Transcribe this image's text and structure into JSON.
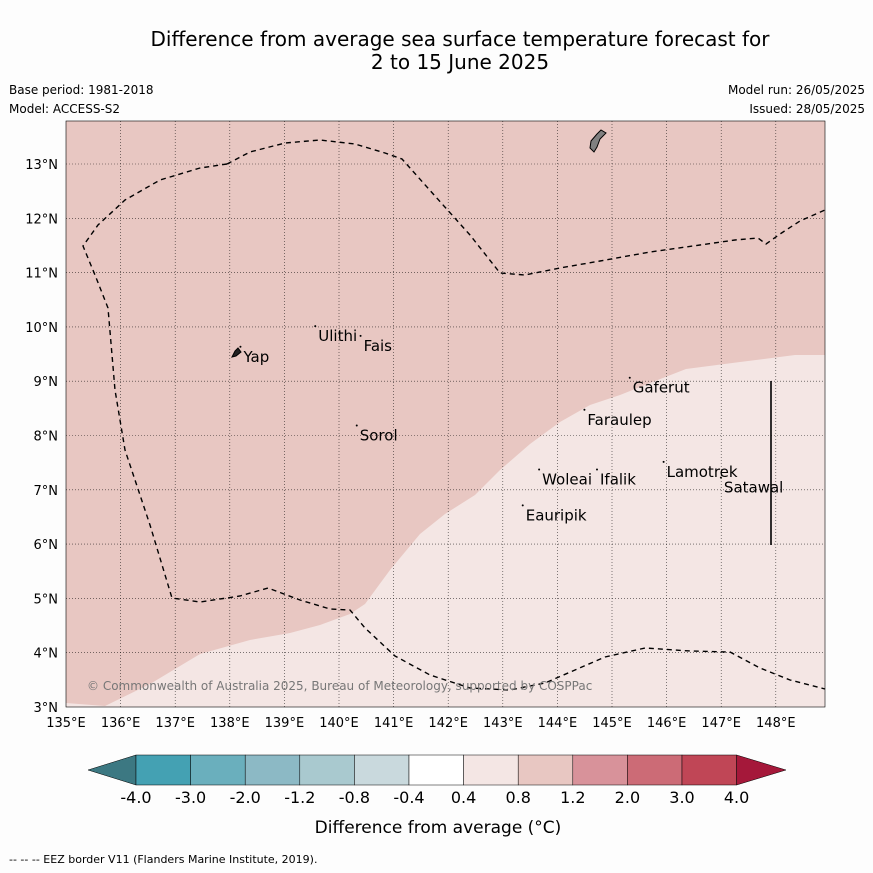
{
  "title": {
    "line1": "Difference from average sea surface temperature forecast for",
    "line2": "2 to 15 June 2025"
  },
  "meta_left": {
    "base_period": "Base period: 1981-2018",
    "model": "Model: ACCESS-S2"
  },
  "meta_right": {
    "model_run": "Model run: 26/05/2025",
    "issued": "Issued: 28/05/2025"
  },
  "map": {
    "lat_ticks": [
      "3°N",
      "4°N",
      "5°N",
      "6°N",
      "7°N",
      "8°N",
      "9°N",
      "10°N",
      "11°N",
      "12°N",
      "13°N"
    ],
    "lon_ticks": [
      "135°E",
      "136°E",
      "137°E",
      "138°E",
      "139°E",
      "140°E",
      "141°E",
      "142°E",
      "143°E",
      "144°E",
      "145°E",
      "146°E",
      "147°E",
      "148°E"
    ],
    "places": [
      {
        "name": "Yap",
        "lon": 138.25,
        "lat": 9.45
      },
      {
        "name": "Ulithi",
        "lon": 139.62,
        "lat": 9.83
      },
      {
        "name": "Fais",
        "lon": 140.45,
        "lat": 9.65
      },
      {
        "name": "Sorol",
        "lon": 140.38,
        "lat": 8.0
      },
      {
        "name": "Gaferut",
        "lon": 145.38,
        "lat": 8.88
      },
      {
        "name": "Faraulep",
        "lon": 144.55,
        "lat": 8.29
      },
      {
        "name": "Woleai",
        "lon": 143.72,
        "lat": 7.19
      },
      {
        "name": "Ifalik",
        "lon": 144.78,
        "lat": 7.19
      },
      {
        "name": "Lamotrek",
        "lon": 146.0,
        "lat": 7.33
      },
      {
        "name": "Satawal",
        "lon": 147.05,
        "lat": 7.04
      },
      {
        "name": "Eauripik",
        "lon": 143.42,
        "lat": 6.53
      }
    ],
    "copyright": "© Commonwealth of Australia 2025, Bureau of Meteorology, supported by COSPPac",
    "colors": {
      "range_0.8_1.2": "#e8c7c2",
      "range_0.4_0.8": "#f4e6e4",
      "land": "#808080"
    }
  },
  "colorbar": {
    "bins": [
      {
        "color": "#3c7882"
      },
      {
        "color": "#44a1b3"
      },
      {
        "color": "#6aafbd"
      },
      {
        "color": "#8cb9c5"
      },
      {
        "color": "#a9c9cf"
      },
      {
        "color": "#c9d9dd"
      },
      {
        "color": "#ffffff"
      },
      {
        "color": "#f4e6e4"
      },
      {
        "color": "#e8c7c2"
      },
      {
        "color": "#d8929a"
      },
      {
        "color": "#cc6b76"
      },
      {
        "color": "#c04656"
      },
      {
        "color": "#a5183a"
      }
    ],
    "tick_labels": [
      "-4.0",
      "-3.0",
      "-2.0",
      "-1.2",
      "-0.8",
      "-0.4",
      "0.4",
      "0.8",
      "1.2",
      "2.0",
      "3.0",
      "4.0"
    ],
    "label": "Difference from average (°C)"
  },
  "footer": "-- -- -- EEZ border V11 (Flanders Marine Institute, 2019)."
}
